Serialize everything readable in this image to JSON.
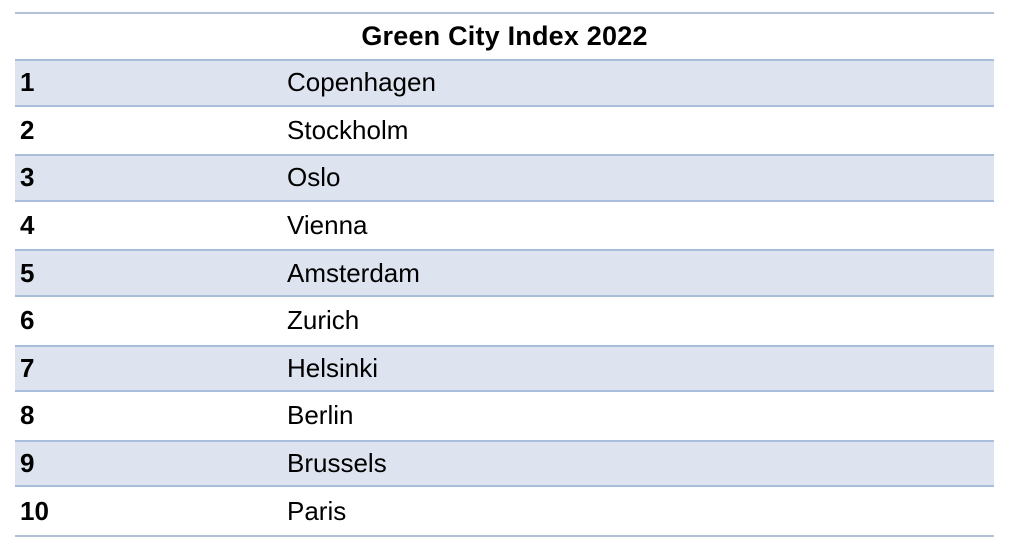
{
  "table": {
    "title": "Green City Index 2022",
    "rows": [
      {
        "rank": "1",
        "city": "Copenhagen"
      },
      {
        "rank": "2",
        "city": "Stockholm"
      },
      {
        "rank": "3",
        "city": "Oslo"
      },
      {
        "rank": "4",
        "city": "Vienna"
      },
      {
        "rank": "5",
        "city": "Amsterdam"
      },
      {
        "rank": "6",
        "city": "Zurich"
      },
      {
        "rank": "7",
        "city": "Helsinki"
      },
      {
        "rank": "8",
        "city": "Berlin"
      },
      {
        "rank": "9",
        "city": "Brussels"
      },
      {
        "rank": "10",
        "city": "Paris"
      }
    ]
  },
  "colors": {
    "row_alt_fill": "#dde4ef",
    "row_alt_border": "#a9bedb",
    "table_border": "#b3c1d8",
    "text_color": "#000000",
    "page_bg": "#ffffff"
  }
}
